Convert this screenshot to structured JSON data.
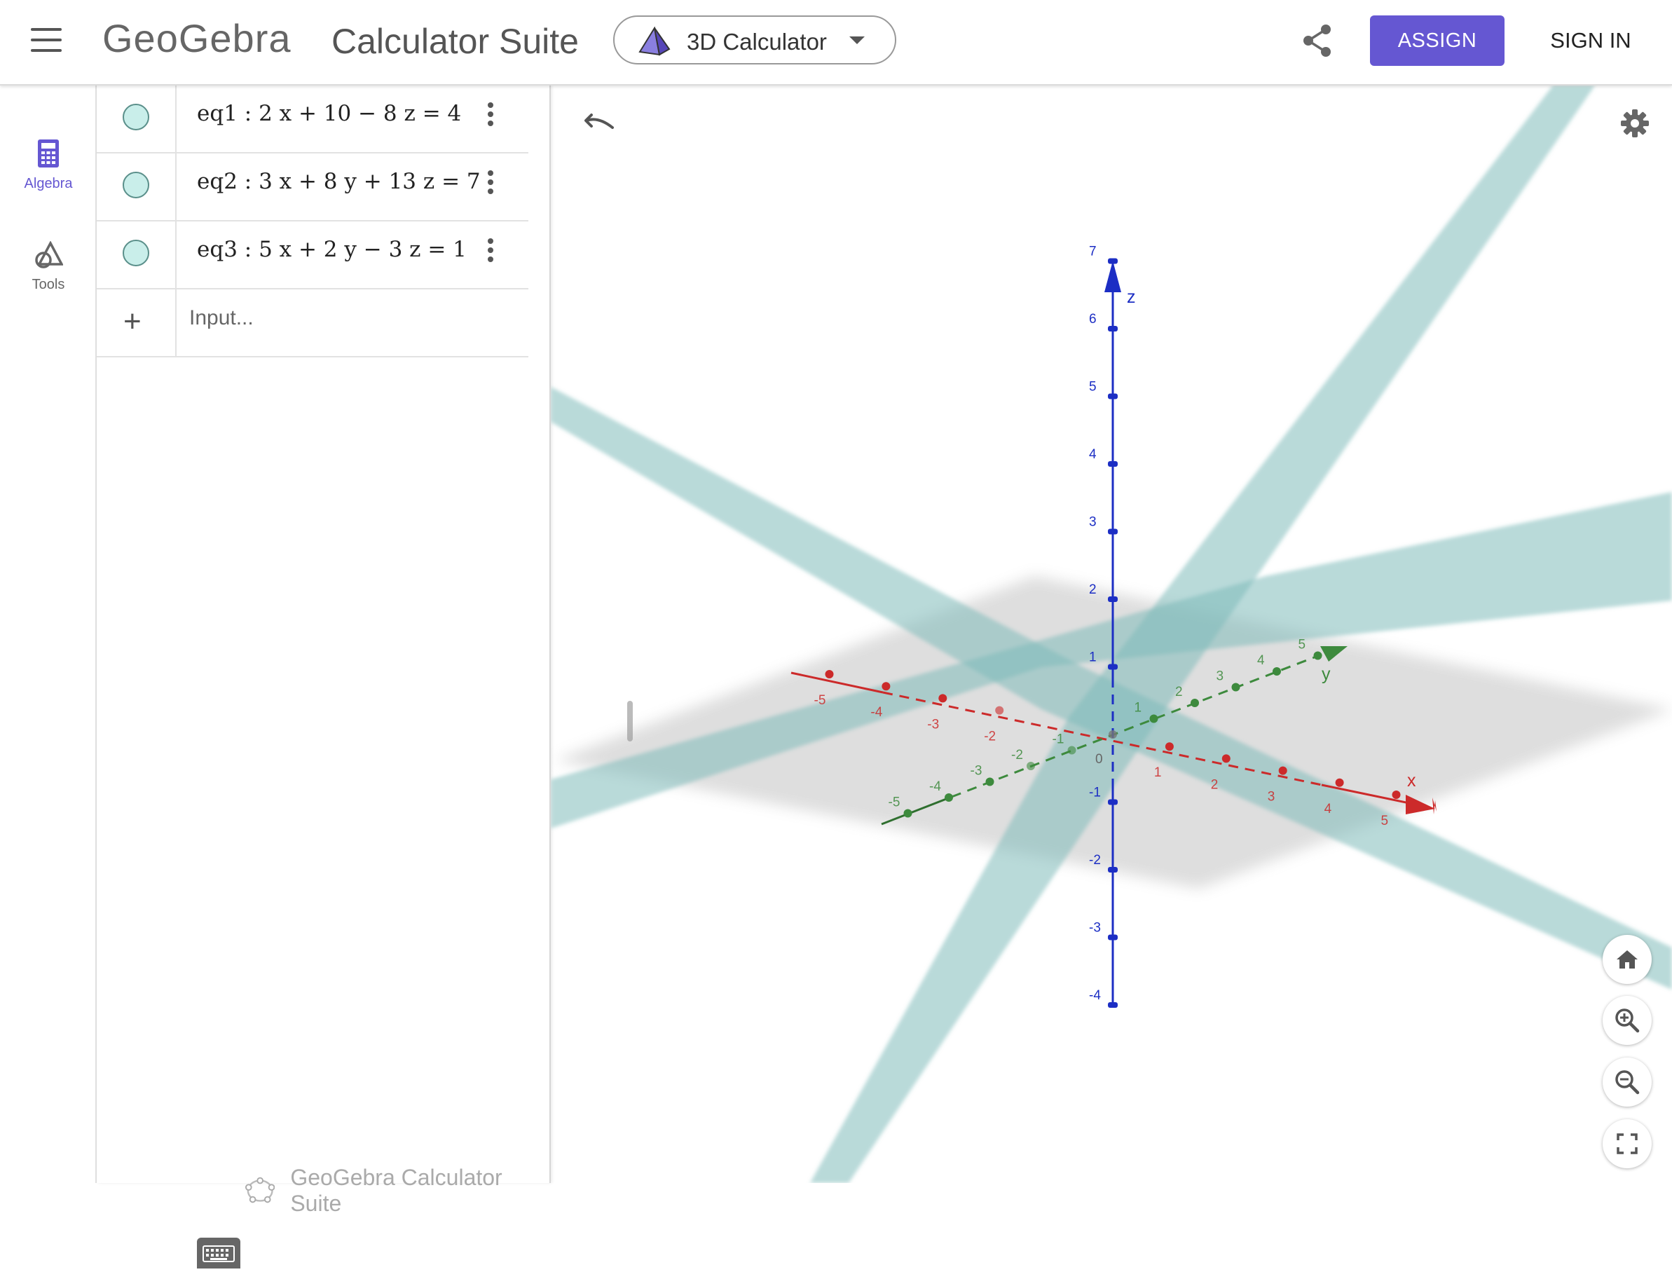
{
  "header": {
    "brand": "GeoGebra",
    "title": "Calculator Suite",
    "app_selector": "3D Calculator",
    "assign_label": "ASSIGN",
    "sign_in_label": "SIGN IN"
  },
  "nav": {
    "items": [
      {
        "label": "Algebra",
        "active": true
      },
      {
        "label": "Tools",
        "active": false
      }
    ]
  },
  "algebra": {
    "rows": [
      {
        "name": "eq1",
        "formula": "eq1 :  2 x + 10 − 8 z  =  4"
      },
      {
        "name": "eq2",
        "formula": "eq2 :  3 x + 8 y + 13 z  =  7"
      },
      {
        "name": "eq3",
        "formula": "eq3 :  5 x + 2 y − 3 z  =  1"
      }
    ],
    "input_placeholder": "Input...",
    "footer": "GeoGebra Calculator Suite"
  },
  "graphics": {
    "z_axis_label": "z",
    "x_axis_label": "x",
    "y_axis_label": "y",
    "z_ticks": [
      "7",
      "6",
      "5",
      "4",
      "3",
      "2",
      "1",
      "-1",
      "-2",
      "-3",
      "-4"
    ],
    "x_ticks": [
      "-5",
      "-4",
      "-3",
      "-2",
      "1",
      "2",
      "3",
      "4",
      "5"
    ],
    "y_ticks": [
      "-5",
      "-4",
      "-3",
      "-2",
      "-1",
      "1",
      "2",
      "3",
      "4",
      "5"
    ],
    "origin_label": "0",
    "colors": {
      "plane": "#7fbcba",
      "xy_plane": "#9a9a9a",
      "x_axis": "#cc2a2a",
      "y_axis": "#3d8a3d",
      "z_axis": "#1c2ec4",
      "accent": "#6557d2"
    }
  },
  "icons": {
    "menu": "hamburger-icon",
    "share": "share-icon",
    "undo": "undo-icon",
    "settings": "gear-icon",
    "home": "home-icon",
    "zoom_in": "zoom-in-icon",
    "zoom_out": "zoom-out-icon",
    "fullscreen": "fullscreen-icon",
    "keyboard": "keyboard-icon"
  }
}
